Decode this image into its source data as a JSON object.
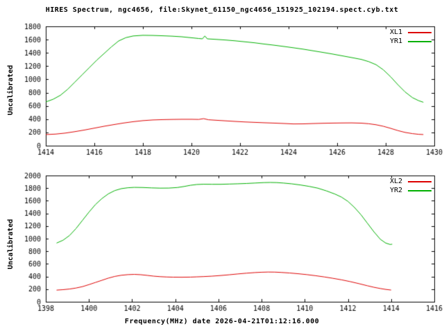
{
  "title": "HIRES Spectrum, ngc4656, file:Skynet_61150_ngc4656_151925_102194.spect.cyb.txt",
  "xlabel": "Frequency(MHz) date 2026-04-21T01:12:16.000",
  "colors": {
    "red": "#dd0000",
    "green": "#00b000",
    "axis": "#000000",
    "background": "#ffffff"
  },
  "chart_data": [
    {
      "type": "line",
      "ylabel": "Uncalibrated",
      "xlim": [
        1414,
        1430
      ],
      "ylim": [
        0,
        1800
      ],
      "xticks": [
        1414,
        1416,
        1418,
        1420,
        1422,
        1424,
        1426,
        1428,
        1430
      ],
      "yticks": [
        0,
        200,
        400,
        600,
        800,
        1000,
        1200,
        1400,
        1600,
        1800
      ],
      "grid": false,
      "legend_position": "top-right",
      "series": [
        {
          "name": "XL1",
          "color": "#dd0000",
          "points": [
            [
              1414,
              168
            ],
            [
              1414.4,
              175
            ],
            [
              1414.8,
              190
            ],
            [
              1415.2,
              212
            ],
            [
              1415.6,
              237
            ],
            [
              1416,
              265
            ],
            [
              1416.4,
              293
            ],
            [
              1416.8,
              318
            ],
            [
              1417.2,
              342
            ],
            [
              1417.6,
              362
            ],
            [
              1418,
              378
            ],
            [
              1418.4,
              388
            ],
            [
              1418.8,
              393
            ],
            [
              1419.2,
              396
            ],
            [
              1419.6,
              398
            ],
            [
              1420,
              398
            ],
            [
              1420.3,
              396
            ],
            [
              1420.5,
              408
            ],
            [
              1420.7,
              391
            ],
            [
              1421,
              384
            ],
            [
              1421.4,
              375
            ],
            [
              1421.8,
              366
            ],
            [
              1422.2,
              358
            ],
            [
              1422.6,
              352
            ],
            [
              1423,
              346
            ],
            [
              1423.4,
              341
            ],
            [
              1423.8,
              335
            ],
            [
              1424.2,
              328
            ],
            [
              1424.6,
              329
            ],
            [
              1425,
              334
            ],
            [
              1425.4,
              338
            ],
            [
              1425.8,
              341
            ],
            [
              1426.2,
              343
            ],
            [
              1426.6,
              344
            ],
            [
              1427,
              340
            ],
            [
              1427.3,
              331
            ],
            [
              1427.6,
              316
            ],
            [
              1427.9,
              293
            ],
            [
              1428.2,
              262
            ],
            [
              1428.5,
              228
            ],
            [
              1428.8,
              200
            ],
            [
              1429.1,
              182
            ],
            [
              1429.35,
              172
            ],
            [
              1429.55,
              168
            ]
          ]
        },
        {
          "name": "YR1",
          "color": "#00b000",
          "points": [
            [
              1414,
              660
            ],
            [
              1414.3,
              700
            ],
            [
              1414.6,
              760
            ],
            [
              1414.9,
              850
            ],
            [
              1415.2,
              960
            ],
            [
              1415.5,
              1070
            ],
            [
              1415.8,
              1180
            ],
            [
              1416.1,
              1290
            ],
            [
              1416.4,
              1390
            ],
            [
              1416.7,
              1490
            ],
            [
              1417,
              1580
            ],
            [
              1417.3,
              1630
            ],
            [
              1417.6,
              1655
            ],
            [
              1418,
              1665
            ],
            [
              1418.4,
              1663
            ],
            [
              1418.8,
              1658
            ],
            [
              1419.2,
              1652
            ],
            [
              1419.6,
              1643
            ],
            [
              1420,
              1628
            ],
            [
              1420.3,
              1617
            ],
            [
              1420.45,
              1612
            ],
            [
              1420.55,
              1655
            ],
            [
              1420.65,
              1612
            ],
            [
              1421,
              1604
            ],
            [
              1421.4,
              1594
            ],
            [
              1421.8,
              1582
            ],
            [
              1422.2,
              1567
            ],
            [
              1422.6,
              1552
            ],
            [
              1423,
              1533
            ],
            [
              1423.4,
              1516
            ],
            [
              1423.8,
              1497
            ],
            [
              1424.2,
              1477
            ],
            [
              1424.6,
              1456
            ],
            [
              1425,
              1432
            ],
            [
              1425.4,
              1408
            ],
            [
              1425.8,
              1383
            ],
            [
              1426.2,
              1356
            ],
            [
              1426.6,
              1329
            ],
            [
              1427,
              1301
            ],
            [
              1427.3,
              1268
            ],
            [
              1427.6,
              1222
            ],
            [
              1427.9,
              1145
            ],
            [
              1428.2,
              1040
            ],
            [
              1428.5,
              920
            ],
            [
              1428.8,
              810
            ],
            [
              1429.1,
              725
            ],
            [
              1429.35,
              680
            ],
            [
              1429.55,
              655
            ]
          ]
        }
      ]
    },
    {
      "type": "line",
      "ylabel": "Uncalibrated",
      "xlim": [
        1398,
        1416
      ],
      "ylim": [
        0,
        2000
      ],
      "xticks": [
        1398,
        1400,
        1402,
        1404,
        1406,
        1408,
        1410,
        1412,
        1414,
        1416
      ],
      "yticks": [
        0,
        200,
        400,
        600,
        800,
        1000,
        1200,
        1400,
        1600,
        1800,
        2000
      ],
      "grid": false,
      "legend_position": "top-right",
      "series": [
        {
          "name": "XL2",
          "color": "#dd0000",
          "points": [
            [
              1398.5,
              185
            ],
            [
              1398.8,
              192
            ],
            [
              1399.1,
              202
            ],
            [
              1399.4,
              218
            ],
            [
              1399.7,
              240
            ],
            [
              1400,
              272
            ],
            [
              1400.3,
              306
            ],
            [
              1400.6,
              340
            ],
            [
              1400.9,
              375
            ],
            [
              1401.2,
              402
            ],
            [
              1401.5,
              420
            ],
            [
              1401.8,
              430
            ],
            [
              1402.1,
              434
            ],
            [
              1402.4,
              429
            ],
            [
              1402.7,
              418
            ],
            [
              1403,
              406
            ],
            [
              1403.3,
              398
            ],
            [
              1403.6,
              393
            ],
            [
              1403.9,
              390
            ],
            [
              1404.3,
              389
            ],
            [
              1404.7,
              391
            ],
            [
              1405,
              395
            ],
            [
              1405.3,
              399
            ],
            [
              1405.7,
              406
            ],
            [
              1406.1,
              416
            ],
            [
              1406.5,
              428
            ],
            [
              1406.9,
              441
            ],
            [
              1407.3,
              453
            ],
            [
              1407.7,
              463
            ],
            [
              1408,
              468
            ],
            [
              1408.3,
              471
            ],
            [
              1408.6,
              470
            ],
            [
              1408.9,
              465
            ],
            [
              1409.3,
              456
            ],
            [
              1409.7,
              444
            ],
            [
              1410.1,
              430
            ],
            [
              1410.5,
              413
            ],
            [
              1410.9,
              394
            ],
            [
              1411.3,
              372
            ],
            [
              1411.7,
              348
            ],
            [
              1412.1,
              320
            ],
            [
              1412.5,
              288
            ],
            [
              1412.9,
              254
            ],
            [
              1413.2,
              230
            ],
            [
              1413.5,
              210
            ],
            [
              1413.75,
              196
            ],
            [
              1414,
              186
            ]
          ]
        },
        {
          "name": "YR2",
          "color": "#00b000",
          "points": [
            [
              1398.5,
              930
            ],
            [
              1398.8,
              975
            ],
            [
              1399.1,
              1050
            ],
            [
              1399.4,
              1160
            ],
            [
              1399.7,
              1290
            ],
            [
              1400,
              1420
            ],
            [
              1400.3,
              1540
            ],
            [
              1400.6,
              1635
            ],
            [
              1400.9,
              1710
            ],
            [
              1401.2,
              1762
            ],
            [
              1401.5,
              1792
            ],
            [
              1401.8,
              1806
            ],
            [
              1402.1,
              1812
            ],
            [
              1402.5,
              1810
            ],
            [
              1402.9,
              1804
            ],
            [
              1403.3,
              1800
            ],
            [
              1403.7,
              1801
            ],
            [
              1404.1,
              1810
            ],
            [
              1404.4,
              1826
            ],
            [
              1404.7,
              1845
            ],
            [
              1405,
              1858
            ],
            [
              1405.3,
              1862
            ],
            [
              1405.7,
              1861
            ],
            [
              1406.1,
              1861
            ],
            [
              1406.5,
              1865
            ],
            [
              1406.9,
              1869
            ],
            [
              1407.3,
              1874
            ],
            [
              1407.7,
              1881
            ],
            [
              1408.1,
              1888
            ],
            [
              1408.4,
              1890
            ],
            [
              1408.7,
              1888
            ],
            [
              1409,
              1881
            ],
            [
              1409.4,
              1868
            ],
            [
              1409.8,
              1850
            ],
            [
              1410.2,
              1828
            ],
            [
              1410.6,
              1800
            ],
            [
              1411,
              1757
            ],
            [
              1411.4,
              1706
            ],
            [
              1411.7,
              1658
            ],
            [
              1412,
              1590
            ],
            [
              1412.3,
              1495
            ],
            [
              1412.6,
              1380
            ],
            [
              1412.9,
              1245
            ],
            [
              1413.2,
              1110
            ],
            [
              1413.5,
              990
            ],
            [
              1413.75,
              930
            ],
            [
              1413.95,
              908
            ],
            [
              1414.05,
              912
            ]
          ]
        }
      ]
    }
  ]
}
